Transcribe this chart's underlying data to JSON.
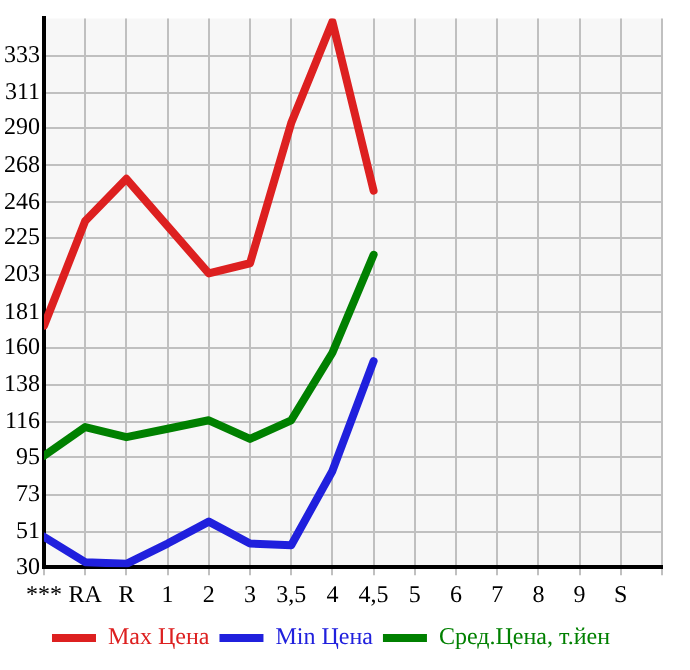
{
  "chart_data": {
    "type": "line",
    "categories": [
      "***",
      "RA",
      "R",
      "1",
      "2",
      "3",
      "3,5",
      "4",
      "4,5",
      "5",
      "6",
      "7",
      "8",
      "9",
      "S"
    ],
    "series": [
      {
        "name": "Max Цена",
        "color": "#dd2020",
        "values": [
          173,
          235,
          260,
          232,
          204,
          210,
          293,
          353,
          253,
          null,
          null,
          null,
          null,
          null,
          null
        ]
      },
      {
        "name": "Min Цена",
        "color": "#2020dd",
        "values": [
          48,
          33,
          32,
          44,
          57,
          44,
          43,
          87,
          152,
          null,
          null,
          null,
          null,
          null,
          null
        ]
      },
      {
        "name": "Сред.Цена, т.йен",
        "color": "#008000",
        "values": [
          96,
          113,
          107,
          112,
          117,
          106,
          117,
          157,
          215,
          null,
          null,
          null,
          null,
          null,
          null
        ]
      }
    ],
    "ylim": [
      30,
      355
    ],
    "yticks": [
      30,
      51,
      73,
      95,
      116,
      138,
      160,
      181,
      203,
      225,
      246,
      268,
      290,
      311,
      333
    ],
    "grid": true,
    "legend": "bottom",
    "marker": "none",
    "line_style": "solid"
  }
}
